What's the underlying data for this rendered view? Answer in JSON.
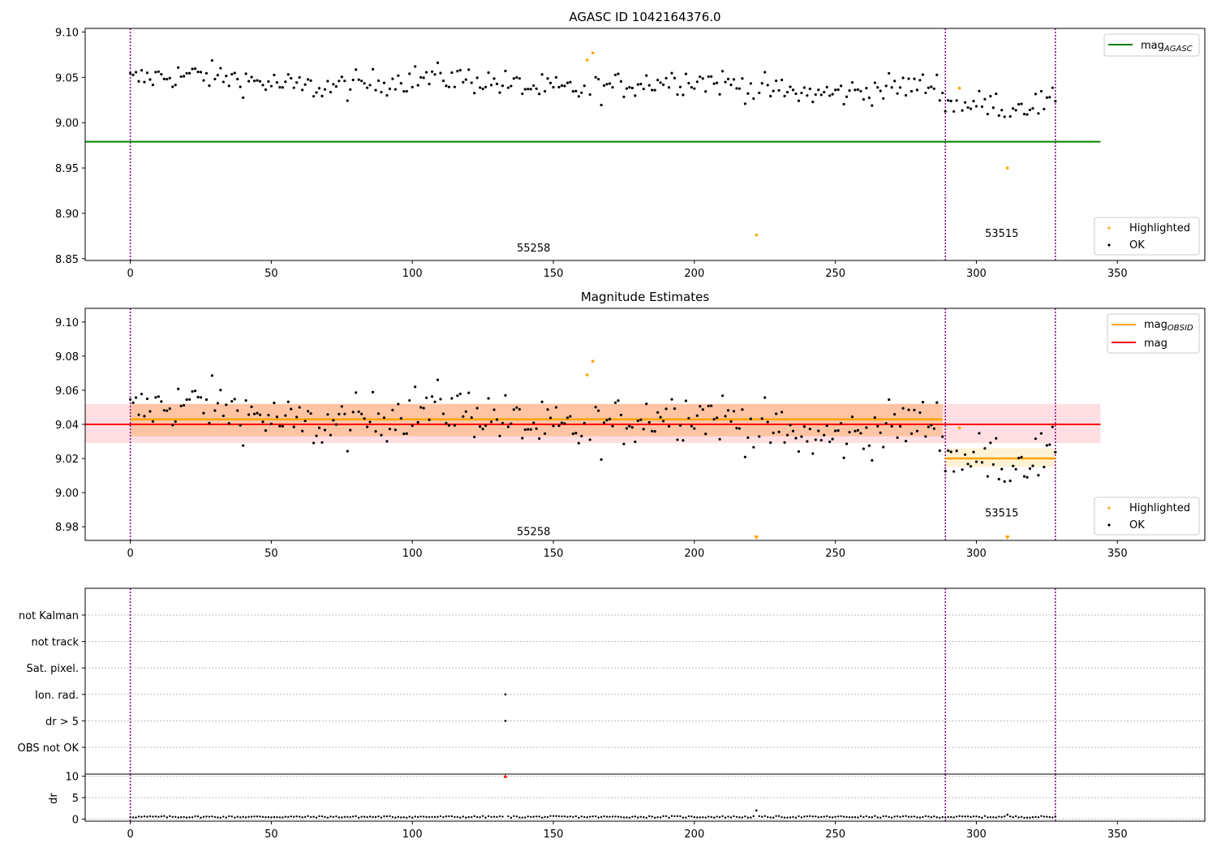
{
  "figure": {
    "title_top": "AGASC ID 1042164376.0",
    "title_middle": "Magnitude Estimates"
  },
  "colors": {
    "ok": "#000000",
    "highlighted": "#ffa500",
    "agasc_line": "#008000",
    "obsid_line": "#ffa500",
    "mag_line": "#ff0000",
    "vline": "#800080",
    "band_mag": "#ffc0c8",
    "band_obsid": "#ffb27a",
    "band_obsid_right": "#ffe9b8"
  },
  "chart_data": [
    {
      "type": "scatter",
      "name_key": "top",
      "title": "AGASC ID 1042164376.0",
      "xlim": [
        -16,
        381
      ],
      "ylim": [
        8.848,
        9.104
      ],
      "xticks": [
        0,
        50,
        100,
        150,
        200,
        250,
        300,
        350
      ],
      "yticks": [
        "8.85",
        "8.90",
        "8.95",
        "9.00",
        "9.05",
        "9.10"
      ],
      "ytick_values": [
        8.85,
        8.9,
        8.95,
        9.0,
        9.05,
        9.1
      ],
      "hlines": [
        {
          "label": "mag",
          "label_sub": "AGASC",
          "y": 8.979,
          "x": [
            -16,
            344
          ],
          "color": "#008000"
        }
      ],
      "vlines": [
        0,
        289,
        328
      ],
      "annotations": [
        {
          "text": "55258",
          "x": 143,
          "y": 8.858
        },
        {
          "text": "53515",
          "x": 309,
          "y": 8.874
        }
      ],
      "legend_upper": "top-right",
      "legend_lower": "bottom-right",
      "legend": [
        "Highlighted",
        "OK"
      ],
      "highlighted_points": [
        [
          162,
          9.069
        ],
        [
          164,
          9.077
        ],
        [
          222,
          8.876
        ],
        [
          294,
          9.038
        ],
        [
          311,
          8.95
        ]
      ]
    },
    {
      "type": "scatter",
      "name_key": "middle",
      "title": "Magnitude Estimates",
      "xlim": [
        -16,
        381
      ],
      "ylim": [
        8.972,
        9.108
      ],
      "xticks": [
        0,
        50,
        100,
        150,
        200,
        250,
        300,
        350
      ],
      "yticks": [
        "8.98",
        "9.00",
        "9.02",
        "9.04",
        "9.06",
        "9.08",
        "9.10"
      ],
      "ytick_values": [
        8.98,
        9.0,
        9.02,
        9.04,
        9.06,
        9.08,
        9.1
      ],
      "mag": {
        "label": "mag",
        "y": 9.04,
        "band": [
          9.029,
          9.052
        ],
        "x": [
          -16,
          344
        ]
      },
      "obsid_segments": [
        {
          "x": [
            0,
            288
          ],
          "y": 9.043,
          "band": [
            9.033,
            9.052
          ]
        },
        {
          "x": [
            289,
            328
          ],
          "y": 9.02,
          "band": [
            9.015,
            9.026
          ]
        }
      ],
      "obsid_label": "mag",
      "obsid_label_sub": "OBSID",
      "vlines": [
        0,
        289,
        328
      ],
      "annotations": [
        {
          "text": "55258",
          "x": 143,
          "y": 8.975
        },
        {
          "text": "53515",
          "x": 309,
          "y": 8.986
        }
      ],
      "legend": [
        "Highlighted",
        "OK"
      ],
      "highlighted_points": [
        [
          162,
          9.069
        ],
        [
          164,
          9.077
        ],
        [
          294,
          9.038
        ]
      ],
      "clipped_points": [
        222,
        311
      ]
    },
    {
      "type": "scatter",
      "name_key": "flags",
      "xlim": [
        -16,
        381
      ],
      "categories": [
        "OBS not OK",
        "dr > 5",
        "Ion. rad.",
        "Sat. pixel.",
        "not track",
        "not Kalman"
      ],
      "flag_points": [
        {
          "category": "Ion. rad.",
          "x": 133
        },
        {
          "category": "dr > 5",
          "x": 133
        }
      ],
      "vlines": [
        0,
        289,
        328
      ]
    },
    {
      "type": "scatter",
      "name_key": "dr",
      "ylabel": "dr",
      "xlim": [
        -16,
        381
      ],
      "ylim": [
        -0.5,
        10.5
      ],
      "yticks": [
        "0",
        "5",
        "10"
      ],
      "ytick_values": [
        0,
        5,
        10
      ],
      "xticks": [
        0,
        50,
        100,
        150,
        200,
        250,
        300,
        350
      ],
      "outliers": [
        {
          "x": 133,
          "y": 10,
          "color": "#ff0000"
        },
        {
          "x": 222,
          "y": 2.0,
          "color": "#000000"
        },
        {
          "x": 311,
          "y": 1.0,
          "color": "#000000"
        }
      ],
      "vlines": [
        0,
        289,
        328
      ]
    }
  ]
}
